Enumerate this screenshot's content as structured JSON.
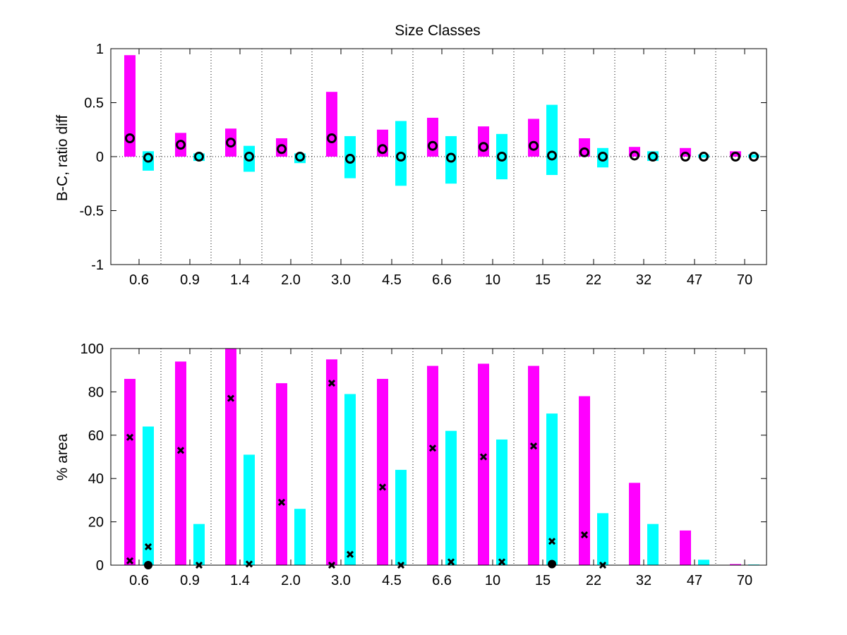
{
  "colors": {
    "magenta": "#ff00ff",
    "cyan": "#00ffff",
    "marker": "#000000",
    "axis": "#000000"
  },
  "chart_data": [
    {
      "type": "bar",
      "title": "Size Classes",
      "xlabel": "",
      "ylabel": "B-C, ratio diff",
      "ylim": [
        -1,
        1
      ],
      "yticks": [
        -1,
        -0.5,
        0,
        0.5,
        1
      ],
      "ytick_labels": [
        "-1",
        "-0.5",
        "0",
        "0.5",
        "1"
      ],
      "categories": [
        "0.6",
        "0.9",
        "1.4",
        "2.0",
        "3.0",
        "4.5",
        "6.6",
        "10",
        "15",
        "22",
        "32",
        "47",
        "70"
      ],
      "series": [
        {
          "name": "magenta",
          "kind": "bar",
          "color": "#ff00ff",
          "values": [
            0.94,
            0.22,
            0.26,
            0.17,
            0.6,
            0.25,
            0.36,
            0.28,
            0.35,
            0.17,
            0.09,
            0.08,
            0.05
          ]
        },
        {
          "name": "cyan",
          "kind": "bar",
          "color": "#00ffff",
          "range": true,
          "low": [
            -0.13,
            -0.04,
            -0.14,
            -0.06,
            -0.2,
            -0.27,
            -0.25,
            -0.21,
            -0.17,
            -0.1,
            -0.04,
            -0.01,
            -0.01
          ],
          "high": [
            0.05,
            0.03,
            0.1,
            0.03,
            0.19,
            0.33,
            0.19,
            0.21,
            0.48,
            0.08,
            0.05,
            0.02,
            0.02
          ]
        },
        {
          "name": "magenta-circles",
          "kind": "marker",
          "marker": "circle-open",
          "offset": "left",
          "values": [
            0.17,
            0.11,
            0.13,
            0.07,
            0.17,
            0.07,
            0.1,
            0.09,
            0.1,
            0.04,
            0.01,
            0.0,
            0.0
          ]
        },
        {
          "name": "cyan-circles",
          "kind": "marker",
          "marker": "circle-open",
          "offset": "right",
          "values": [
            -0.01,
            0.0,
            0.0,
            0.0,
            -0.02,
            0.0,
            -0.01,
            0.0,
            0.01,
            0.0,
            0.0,
            0.0,
            0.0
          ]
        }
      ],
      "grid": "vertical dotted separators"
    },
    {
      "type": "bar",
      "title": "",
      "xlabel": "",
      "ylabel": "% area",
      "ylim": [
        0,
        100
      ],
      "yticks": [
        0,
        20,
        40,
        60,
        80,
        100
      ],
      "ytick_labels": [
        "0",
        "20",
        "40",
        "60",
        "80",
        "100"
      ],
      "categories": [
        "0.6",
        "0.9",
        "1.4",
        "2.0",
        "3.0",
        "4.5",
        "6.6",
        "10",
        "15",
        "22",
        "32",
        "47",
        "70"
      ],
      "series": [
        {
          "name": "magenta",
          "kind": "bar",
          "color": "#ff00ff",
          "values": [
            86,
            94,
            100,
            84,
            95,
            86,
            92,
            93,
            92,
            78,
            38,
            16,
            0.5
          ]
        },
        {
          "name": "cyan",
          "kind": "bar",
          "color": "#00ffff",
          "values": [
            64,
            19,
            51,
            26,
            79,
            44,
            62,
            58,
            70,
            24,
            19,
            2.5,
            0.3
          ]
        },
        {
          "name": "magenta-x-high",
          "kind": "marker",
          "marker": "x",
          "offset": "left",
          "values": [
            59,
            53,
            77,
            29,
            84,
            36,
            54,
            50,
            55,
            14,
            null,
            null,
            null
          ]
        },
        {
          "name": "magenta-x-low",
          "kind": "marker",
          "marker": "x",
          "offset": "left",
          "values": [
            2,
            null,
            null,
            null,
            0,
            null,
            null,
            null,
            null,
            null,
            null,
            null,
            null
          ]
        },
        {
          "name": "cyan-x",
          "kind": "marker",
          "marker": "x",
          "offset": "right",
          "values": [
            8.5,
            0,
            0.5,
            null,
            5,
            0,
            1.5,
            1.5,
            11,
            0,
            null,
            null,
            null
          ]
        },
        {
          "name": "cyan-dot",
          "kind": "marker",
          "marker": "dot",
          "offset": "right",
          "values": [
            0,
            null,
            null,
            null,
            null,
            null,
            null,
            null,
            0.5,
            null,
            null,
            null,
            null
          ]
        }
      ],
      "grid": "vertical dotted separators"
    }
  ]
}
